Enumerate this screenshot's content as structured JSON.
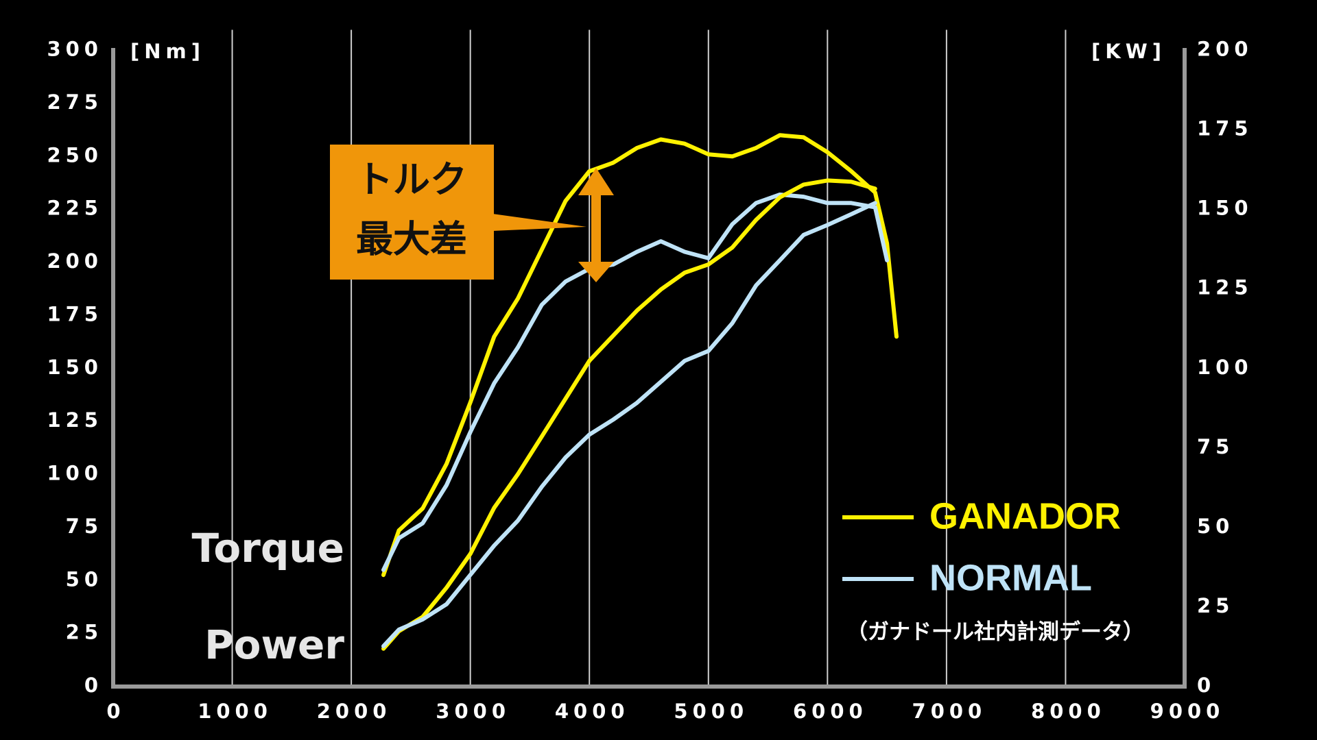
{
  "chart_data": {
    "type": "line",
    "x": [
      2270,
      2400,
      2600,
      2800,
      3000,
      3200,
      3400,
      3600,
      3800,
      4000,
      4200,
      4400,
      4600,
      4800,
      5000,
      5200,
      5400,
      5600,
      5800,
      6000,
      6200,
      6400,
      6500,
      6580
    ],
    "series": [
      {
        "name": "GANADOR",
        "color": "#fff200",
        "values": [
          52.6,
          73.6,
          84,
          105,
          134,
          165,
          183,
          206,
          229,
          243,
          247,
          254,
          258,
          256,
          251,
          250,
          254,
          260,
          259,
          252,
          243,
          233,
          209,
          165
        ]
      },
      {
        "name": "NORMAL",
        "color": "#bfe3f7",
        "values": [
          55,
          70,
          77,
          95,
          120,
          143,
          160,
          180,
          191,
          197,
          199,
          205,
          210,
          205,
          202,
          218,
          228,
          232,
          231,
          228,
          228,
          226,
          201,
          null
        ]
      },
      {
        "color": "#fff200",
        "axis": "y2",
        "values": [
          11.9,
          17.4,
          21.9,
          31.1,
          41.7,
          56.2,
          66.8,
          78.6,
          90.5,
          102.4,
          110.3,
          118.2,
          124.8,
          130.1,
          132.7,
          138.0,
          146.7,
          153.8,
          157.8,
          159.1,
          158.7,
          156.5,
          null,
          null
        ]
      },
      {
        "color": "#bfe3f7",
        "axis": "y2",
        "values": [
          12.7,
          17.9,
          21.1,
          25.9,
          35.1,
          44.3,
          52.2,
          62.8,
          72.0,
          79.2,
          83.9,
          89.2,
          95.8,
          102.4,
          105.5,
          114.2,
          126.1,
          134.0,
          142.0,
          145.1,
          148.5,
          152.0,
          null,
          null
        ]
      }
    ],
    "xlim": [
      0,
      9000
    ],
    "xticks": [
      0,
      1000,
      2000,
      3000,
      4000,
      5000,
      6000,
      7000,
      8000,
      9000
    ],
    "ylim": [
      0,
      300
    ],
    "yticks": [
      0,
      25,
      50,
      75,
      100,
      125,
      150,
      175,
      200,
      225,
      250,
      275,
      300
    ],
    "y2lim": [
      0,
      200
    ],
    "y2ticks": [
      0,
      25,
      50,
      75,
      100,
      125,
      150,
      175,
      200
    ],
    "y_label": "[Nm]",
    "y2_label": "[KW]",
    "curve_labels": [
      "Torque",
      "Power"
    ],
    "annotation": [
      "トルク",
      "最大差"
    ],
    "note": "（ガナドール社内計測データ）",
    "grid": true
  }
}
